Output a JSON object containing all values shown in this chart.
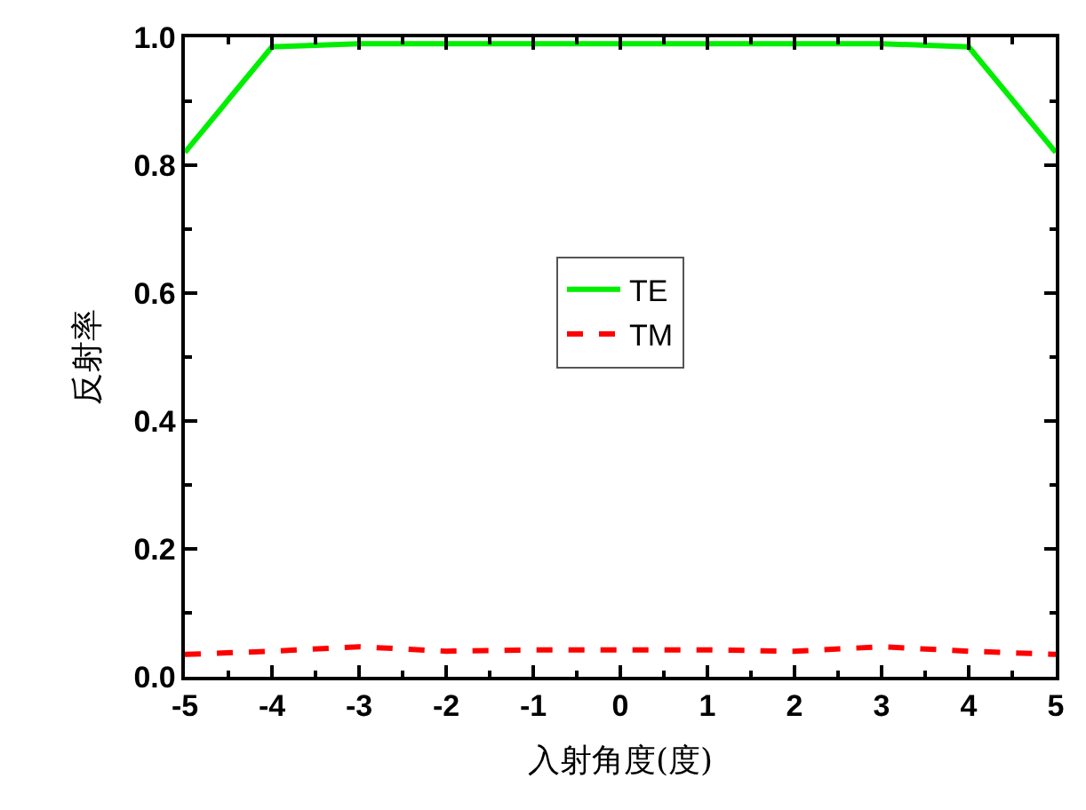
{
  "chart_data": {
    "type": "line",
    "xlabel": "入射角度(度)",
    "ylabel": "反射率",
    "x": [
      -5,
      -4,
      -3,
      -2,
      -1,
      0,
      1,
      2,
      3,
      4,
      5
    ],
    "series": [
      {
        "name": "TE",
        "color": "#00ee00",
        "line_style": "solid",
        "values": [
          0.82,
          0.985,
          0.99,
          0.99,
          0.99,
          0.99,
          0.99,
          0.99,
          0.99,
          0.985,
          0.82
        ]
      },
      {
        "name": "TM",
        "color": "#ff0000",
        "line_style": "dashed",
        "values": [
          0.035,
          0.04,
          0.047,
          0.04,
          0.042,
          0.042,
          0.042,
          0.04,
          0.047,
          0.04,
          0.035
        ]
      }
    ],
    "xlim": [
      -5,
      5
    ],
    "xticks": [
      -5,
      -4,
      -3,
      -2,
      -1,
      0,
      1,
      2,
      3,
      4,
      5
    ],
    "ylim": [
      0,
      1.0
    ],
    "yticks": [
      {
        "value": 0,
        "label": "0.0"
      },
      {
        "value": 0.2,
        "label": "0.2"
      },
      {
        "value": 0.4,
        "label": "0.4"
      },
      {
        "value": 0.6,
        "label": "0.6"
      },
      {
        "value": 0.8,
        "label": "0.8"
      },
      {
        "value": 1.0,
        "label": "1.0"
      }
    ],
    "legend": "center"
  }
}
